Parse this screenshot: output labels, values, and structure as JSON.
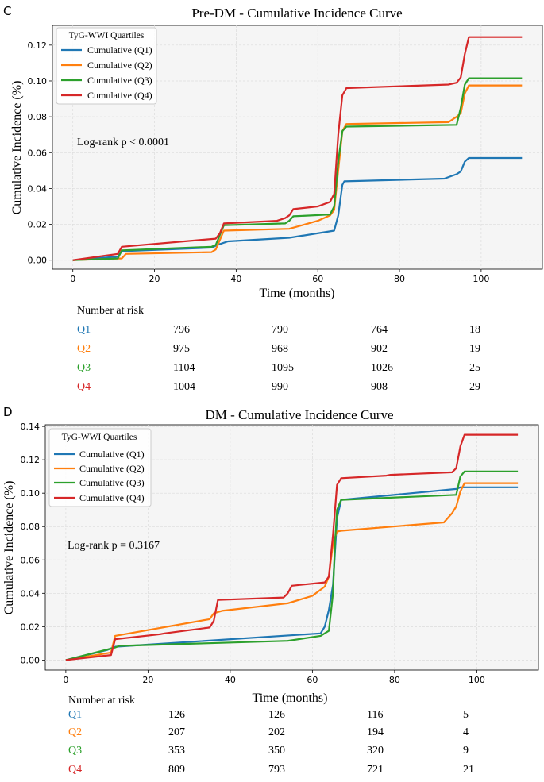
{
  "colors": {
    "Q1": "#1f77b4",
    "Q2": "#ff7f0e",
    "Q3": "#2ca02c",
    "Q4": "#d62728",
    "plot_bg": "#f5f5f5",
    "grid": "#dcdcdc"
  },
  "chart_data": [
    {
      "panel_letter": "C",
      "type": "line",
      "title": "Pre-DM - Cumulative Incidence Curve",
      "xlabel": "Time (months)",
      "ylabel": "Cumulative Incidence (%)",
      "xlim": [
        -5,
        115
      ],
      "ylim": [
        -0.005,
        0.131
      ],
      "xticks": [
        0,
        20,
        40,
        60,
        80,
        100
      ],
      "yticks": [
        0.0,
        0.02,
        0.04,
        0.06,
        0.08,
        0.1,
        0.12
      ],
      "xtick_labels": [
        "0",
        "20",
        "40",
        "60",
        "80",
        "100"
      ],
      "ytick_labels": [
        "0.00",
        "0.02",
        "0.04",
        "0.06",
        "0.08",
        "0.10",
        "0.12"
      ],
      "grid": true,
      "legend_title": "TyG-WWI Quartiles",
      "legend_position": "top-left",
      "annotation": "Log-rank p < 0.0001",
      "series": [
        {
          "key": "Q1",
          "name": "Cumulative (Q1)",
          "x": [
            0,
            11,
            12,
            34,
            36,
            38,
            53,
            64,
            65,
            66,
            66.5,
            91,
            94,
            95,
            96,
            97,
            110
          ],
          "y": [
            0,
            0.002,
            0.005,
            0.007,
            0.009,
            0.0105,
            0.0125,
            0.0165,
            0.025,
            0.042,
            0.044,
            0.0455,
            0.048,
            0.0495,
            0.055,
            0.057,
            0.057
          ]
        },
        {
          "key": "Q2",
          "name": "Cumulative (Q2)",
          "x": [
            0,
            12,
            13,
            34,
            35,
            37,
            53,
            60,
            63,
            64,
            65,
            66,
            67,
            92,
            94,
            95,
            96,
            97,
            110
          ],
          "y": [
            0,
            0.001,
            0.0035,
            0.0045,
            0.006,
            0.0165,
            0.0175,
            0.022,
            0.025,
            0.028,
            0.05,
            0.072,
            0.076,
            0.077,
            0.08,
            0.082,
            0.093,
            0.0975,
            0.0975
          ]
        },
        {
          "key": "Q3",
          "name": "Cumulative (Q3)",
          "x": [
            0,
            11,
            12,
            34,
            35,
            37,
            52,
            53,
            54,
            63,
            64,
            65,
            66,
            67,
            94,
            95,
            96,
            97,
            110
          ],
          "y": [
            0,
            0.001,
            0.0055,
            0.0075,
            0.0085,
            0.0195,
            0.0205,
            0.022,
            0.0245,
            0.0255,
            0.03,
            0.055,
            0.072,
            0.0745,
            0.0755,
            0.085,
            0.098,
            0.1015,
            0.1015
          ]
        },
        {
          "key": "Q4",
          "name": "Cumulative (Q4)",
          "x": [
            0,
            11,
            12,
            35,
            36,
            37,
            50,
            52,
            53,
            54,
            60,
            63,
            64,
            65,
            66,
            67,
            92,
            94,
            95,
            96,
            97,
            110
          ],
          "y": [
            0,
            0.0035,
            0.0075,
            0.012,
            0.015,
            0.0205,
            0.022,
            0.0235,
            0.025,
            0.0285,
            0.03,
            0.0325,
            0.037,
            0.07,
            0.092,
            0.096,
            0.098,
            0.099,
            0.102,
            0.115,
            0.1245,
            0.1245
          ]
        }
      ],
      "risk_table": {
        "header": "Number at risk",
        "rows": [
          {
            "key": "Q1",
            "label": "Q1",
            "values": [
              "796",
              "790",
              "764",
              "18"
            ]
          },
          {
            "key": "Q2",
            "label": "Q2",
            "values": [
              "975",
              "968",
              "902",
              "19"
            ]
          },
          {
            "key": "Q3",
            "label": "Q3",
            "values": [
              "1104",
              "1095",
              "1026",
              "25"
            ]
          },
          {
            "key": "Q4",
            "label": "Q4",
            "values": [
              "1004",
              "990",
              "908",
              "29"
            ]
          }
        ]
      }
    },
    {
      "panel_letter": "D",
      "type": "line",
      "title": "DM - Cumulative Incidence Curve",
      "xlabel": "Time (months)",
      "ylabel": "Cumulative Incidence (%)",
      "xlim": [
        -5,
        115
      ],
      "ylim": [
        -0.006,
        0.141
      ],
      "xticks": [
        0,
        20,
        40,
        60,
        80,
        100
      ],
      "yticks": [
        0.0,
        0.02,
        0.04,
        0.06,
        0.08,
        0.1,
        0.12,
        0.14
      ],
      "xtick_labels": [
        "0",
        "20",
        "40",
        "60",
        "80",
        "100"
      ],
      "ytick_labels": [
        "0.00",
        "0.02",
        "0.04",
        "0.06",
        "0.08",
        "0.10",
        "0.12",
        "0.14"
      ],
      "grid": true,
      "legend_title": "TyG-WWI Quartiles",
      "legend_position": "top-left",
      "annotation": "Log-rank p = 0.3167",
      "series": [
        {
          "key": "Q1",
          "name": "Cumulative (Q1)",
          "x": [
            0,
            10,
            12,
            62,
            63,
            64,
            65,
            66,
            67,
            95,
            96,
            110
          ],
          "y": [
            0,
            0.006,
            0.008,
            0.016,
            0.02,
            0.03,
            0.045,
            0.085,
            0.096,
            0.1025,
            0.1035,
            0.1035
          ]
        },
        {
          "key": "Q2",
          "name": "Cumulative (Q2)",
          "x": [
            0,
            11,
            12,
            35,
            36,
            38,
            54,
            60,
            63,
            64,
            65,
            66,
            67,
            92,
            94,
            95,
            96,
            97,
            110
          ],
          "y": [
            0,
            0.0045,
            0.0145,
            0.0245,
            0.028,
            0.0295,
            0.034,
            0.0385,
            0.044,
            0.05,
            0.07,
            0.077,
            0.0775,
            0.0825,
            0.088,
            0.092,
            0.101,
            0.106,
            0.106
          ]
        },
        {
          "key": "Q3",
          "name": "Cumulative (Q3)",
          "x": [
            0,
            12,
            13,
            54,
            62,
            64,
            65,
            65.5,
            66,
            67,
            95,
            96,
            97,
            110
          ],
          "y": [
            0,
            0.0075,
            0.0085,
            0.0115,
            0.0145,
            0.0175,
            0.04,
            0.07,
            0.09,
            0.096,
            0.099,
            0.11,
            0.113,
            0.113
          ]
        },
        {
          "key": "Q4",
          "name": "Cumulative (Q4)",
          "x": [
            0,
            11,
            12,
            23,
            24,
            35,
            36,
            37,
            53,
            54,
            55,
            63,
            64,
            65,
            66,
            67,
            78,
            79,
            94,
            95,
            96,
            97,
            110
          ],
          "y": [
            0,
            0.003,
            0.0125,
            0.0155,
            0.016,
            0.0195,
            0.0235,
            0.036,
            0.0375,
            0.04,
            0.0445,
            0.0465,
            0.05,
            0.075,
            0.105,
            0.109,
            0.1105,
            0.111,
            0.1125,
            0.115,
            0.128,
            0.135,
            0.135
          ]
        }
      ],
      "risk_table": {
        "header": "Number at risk",
        "rows": [
          {
            "key": "Q1",
            "label": "Q1",
            "values": [
              "126",
              "126",
              "116",
              "5"
            ]
          },
          {
            "key": "Q2",
            "label": "Q2",
            "values": [
              "207",
              "202",
              "194",
              "4"
            ]
          },
          {
            "key": "Q3",
            "label": "Q3",
            "values": [
              "353",
              "350",
              "320",
              "9"
            ]
          },
          {
            "key": "Q4",
            "label": "Q4",
            "values": [
              "809",
              "793",
              "721",
              "21"
            ]
          }
        ]
      }
    }
  ]
}
